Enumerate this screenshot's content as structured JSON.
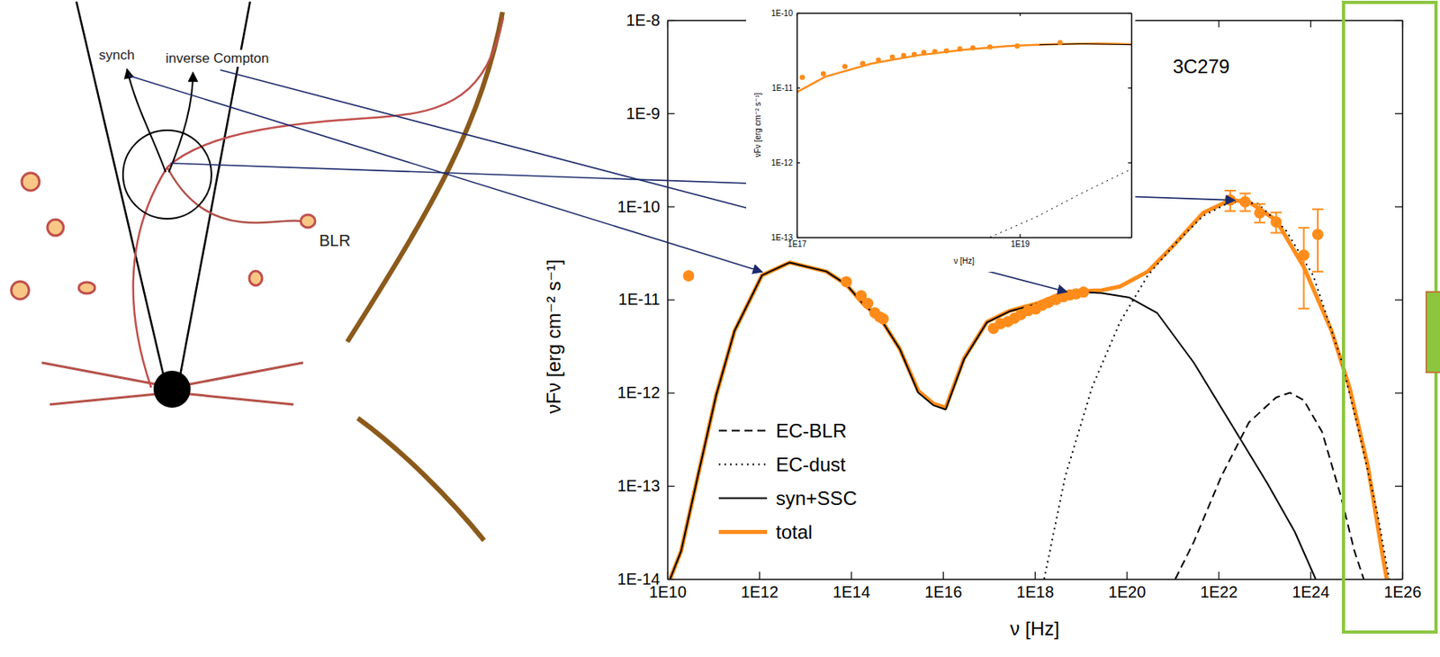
{
  "diagram": {
    "labels": [
      "synch",
      "inverse Compton",
      "BLR"
    ]
  },
  "chart_data": [
    {
      "type": "line",
      "title": "3C279",
      "x_label": "ν [Hz]",
      "y_label": "νFν [erg cm⁻² s⁻¹]",
      "log": true,
      "legend": "lower left",
      "xlim": [
        10000000000.0,
        1e+26
      ],
      "ylim": [
        1e-14,
        1e-08
      ],
      "xticks": [
        {
          "value": 10000000000.0,
          "label": "1E10"
        },
        {
          "value": 1000000000000.0,
          "label": "1E12"
        },
        {
          "value": 100000000000000.0,
          "label": "1E14"
        },
        {
          "value": 1e+16,
          "label": "1E16"
        },
        {
          "value": 1e+18,
          "label": "1E18"
        },
        {
          "value": 1e+20,
          "label": "1E20"
        },
        {
          "value": 1e+22,
          "label": "1E22"
        },
        {
          "value": 1e+24,
          "label": "1E24"
        },
        {
          "value": 1e+26,
          "label": "1E26"
        }
      ],
      "yticks": [
        {
          "value": 1e-14,
          "label": "1E-14"
        },
        {
          "value": 1e-13,
          "label": "1E-13"
        },
        {
          "value": 1e-12,
          "label": "1E-12"
        },
        {
          "value": 1e-11,
          "label": "1E-11"
        },
        {
          "value": 1e-10,
          "label": "1E-10"
        },
        {
          "value": 1e-09,
          "label": "1E-9"
        },
        {
          "value": 1e-08,
          "label": "1E-8"
        }
      ],
      "series": [
        {
          "type": "scatter",
          "color": "#ff8c1a",
          "marker": "circle",
          "x": [
            29000000000.0,
            79000000000000.0,
            166000000000000.0,
            230000000000000.0,
            330000000000000.0,
            420000000000000.0,
            500000000000000.0,
            1.26e+17,
            1.8e+17,
            2.6e+17,
            3.6e+17,
            5e+17,
            7.2e+17,
            1.05e+18,
            1.45e+18,
            2e+18,
            2.9e+18,
            4.2e+18,
            5.8e+18,
            7.9e+18,
            1.15e+19,
            1.8e+22,
            3.8e+22,
            7.9e+22,
            1.8e+23,
            7.2e+23,
            1.45e+24
          ],
          "values": [
            1.8e-11,
            1.55e-11,
            1.1e-11,
            9.1e-12,
            7.2e-12,
            6.5e-12,
            6.2e-12,
            4.9e-12,
            5.5e-12,
            5.8e-12,
            6.3e-12,
            6.9e-12,
            7.6e-12,
            7.9e-12,
            8.7e-12,
            9.3e-12,
            1e-11,
            1.07e-11,
            1.12e-11,
            1.15e-11,
            1.2e-11,
            1.17e-10,
            1.12e-10,
            8.5e-11,
            6.8e-11,
            3e-11,
            5e-11
          ],
          "error_minus": [
            null,
            null,
            null,
            null,
            null,
            null,
            null,
            null,
            null,
            null,
            null,
            null,
            null,
            null,
            null,
            null,
            null,
            null,
            null,
            null,
            null,
            2.8e-11,
            2.3e-11,
            1.8e-11,
            1.6e-11,
            2.2e-11,
            3e-11
          ],
          "error_plus": [
            null,
            null,
            null,
            null,
            null,
            null,
            null,
            null,
            null,
            null,
            null,
            null,
            null,
            null,
            null,
            null,
            null,
            null,
            null,
            null,
            null,
            3.1e-11,
            2.6e-11,
            2.1e-11,
            1.8e-11,
            2.9e-11,
            4.3e-11
          ]
        },
        {
          "name": "EC-BLR",
          "type": "line",
          "color": "#000000",
          "line_style": "dashed",
          "x": [
            1.15e+21,
            2.9e+21,
            1.15e+22,
            4.6e+22,
            1.8e+23,
            3.6e+23,
            7.2e+23,
            1.8e+24,
            4.6e+24,
            9.1e+24,
            1.45e+25
          ],
          "values": [
            1e-14,
            2.5e-14,
            1.26e-13,
            4.8e-13,
            8.9e-13,
            1e-12,
            8.3e-13,
            3.8e-13,
            7.8e-14,
            2e-14,
            1e-14
          ]
        },
        {
          "name": "EC-dust",
          "type": "line",
          "color": "#000000",
          "line_style": "dotted",
          "x": [
            1.6e+18,
            4.6e+18,
            1.8e+19,
            7.2e+19,
            2.9e+20,
            1.15e+21,
            4.6e+21,
            1.8e+22,
            7.2e+22,
            2.9e+23,
            1.15e+24,
            4.6e+24,
            1.15e+25,
            2.9e+25,
            5.2e+25
          ],
          "values": [
            1e-14,
            1.26e-13,
            1.17e-12,
            5.75e-12,
            1.82e-11,
            4e-11,
            7.9e-11,
            1.12e-10,
            1.07e-10,
            5.6e-11,
            1.82e-11,
            2.35e-12,
            3.8e-13,
            5e-14,
            1e-14
          ]
        },
        {
          "name": "syn+SSC",
          "type": "line",
          "color": "#000000",
          "line_style": "solid",
          "x": [
            11500000000.0,
            20000000000.0,
            46000000000.0,
            115000000000.0,
            290000000000.0,
            1150000000000.0,
            4600000000000.0,
            29000000000000.0,
            79000000000000.0,
            180000000000000.0,
            460000000000000.0,
            1150000000000000.0,
            2900000000000000.0,
            6300000000000000.0,
            1.15e+16,
            2.9e+16,
            9.1e+16,
            2.9e+17,
            1.15e+18,
            2.9e+18,
            1.15e+19,
            2.9e+19,
            1.15e+20,
            4.6e+20,
            2.9e+21,
            1.8e+22,
            1.15e+23,
            4.6e+23,
            1.3e+24
          ],
          "values": [
            1e-14,
            2e-14,
            1.26e-13,
            9.3e-13,
            4.6e-12,
            1.82e-11,
            2.5e-11,
            2e-11,
            1.45e-11,
            9.1e-12,
            6e-12,
            2.95e-12,
            1e-12,
            7.3e-13,
            6.6e-13,
            2.3e-12,
            5.7e-12,
            7.5e-12,
            9e-12,
            1.09e-11,
            1.2e-11,
            1.17e-11,
            1.05e-11,
            7.2e-12,
            2.1e-12,
            4.8e-13,
            1.07e-13,
            3.2e-14,
            1e-14
          ]
        },
        {
          "name": "total",
          "type": "line",
          "color": "#ff8c1a",
          "line_style": "solid",
          "x": [
            11500000000.0,
            20000000000.0,
            46000000000.0,
            115000000000.0,
            290000000000.0,
            1150000000000.0,
            4600000000000.0,
            29000000000000.0,
            79000000000000.0,
            180000000000000.0,
            460000000000000.0,
            1150000000000000.0,
            2900000000000000.0,
            6300000000000000.0,
            1.15e+16,
            2.9e+16,
            9.1e+16,
            2.9e+17,
            1.15e+18,
            2.9e+18,
            1.15e+19,
            2.9e+19,
            7.2e+19,
            2.9e+20,
            1.15e+21,
            4.6e+21,
            1.8e+22,
            4.6e+22,
            1.8e+23,
            7.2e+23,
            2.9e+24,
            7.2e+24,
            1.8e+25,
            3.6e+25,
            4.6e+25
          ],
          "values": [
            1e-14,
            2e-14,
            1.26e-13,
            9.3e-13,
            4.6e-12,
            1.82e-11,
            2.5e-11,
            2e-11,
            1.45e-11,
            9.1e-12,
            6e-12,
            2.95e-12,
            1.05e-12,
            7.6e-13,
            6.9e-13,
            2.35e-12,
            5.75e-12,
            7.6e-12,
            9.1e-12,
            1.1e-11,
            1.23e-11,
            1.26e-11,
            1.38e-11,
            2e-11,
            4e-11,
            8.5e-11,
            1.17e-10,
            1.12e-10,
            7.1e-11,
            2.24e-11,
            4.6e-12,
            1.12e-12,
            1.6e-13,
            2e-14,
            1e-14
          ]
        }
      ]
    },
    {
      "type": "line",
      "x_label": "ν [Hz]",
      "y_label": "νFν [erg cm⁻² s⁻¹]",
      "log": true,
      "xlim": [
        1e+17,
        1e+20
      ],
      "ylim": [
        1e-13,
        1e-10
      ],
      "xticks": [
        {
          "value": 1e+17,
          "label": "1E17"
        },
        {
          "value": 1e+19,
          "label": "1E19"
        }
      ],
      "yticks": [
        {
          "value": 1e-13,
          "label": "1E-13"
        },
        {
          "value": 1e-12,
          "label": "1E-12"
        },
        {
          "value": 1e-11,
          "label": "1E-11"
        },
        {
          "value": 1e-10,
          "label": "1E-10"
        }
      ],
      "series": [
        {
          "type": "scatter",
          "color": "#ff8c1a",
          "marker": "circle",
          "x": [
            1.12e+17,
            1.73e+17,
            2.7e+17,
            3.9e+17,
            5.4e+17,
            7.2e+17,
            9.1e+17,
            1.13e+18,
            1.38e+18,
            1.73e+18,
            2.2e+18,
            2.9e+18,
            3.8e+18,
            5.4e+18,
            9.5e+18,
            2.3e+19
          ],
          "values": [
            1.37e-11,
            1.53e-11,
            1.92e-11,
            2.1e-11,
            2.34e-11,
            2.56e-11,
            2.7e-11,
            2.78e-11,
            2.95e-11,
            3.03e-11,
            3.1e-11,
            3.3e-11,
            3.4e-11,
            3.5e-11,
            3.6e-11,
            4e-11
          ]
        },
        {
          "type": "line",
          "color": "#ff8c1a",
          "line_style": "solid",
          "x": [
            1e+17,
            1.8e+17,
            4.7e+17,
            1.2e+18,
            3.1e+18,
            7.8e+18,
            2e+19,
            5.1e+19,
            1e+20
          ],
          "values": [
            8.7e-12,
            1.4e-11,
            2.1e-11,
            2.7e-11,
            3.2e-11,
            3.6e-11,
            3.8e-11,
            3.9e-11,
            3.8e-11
          ]
        },
        {
          "type": "line",
          "color": "#000000",
          "line_style": "solid",
          "x": [
            1.5e+19,
            3.5e+19,
            1e+20
          ],
          "values": [
            3.75e-11,
            3.85e-11,
            3.75e-11
          ]
        },
        {
          "type": "line",
          "color": "#000000",
          "line_style": "dotted",
          "x": [
            5.4e+18,
            1.4e+19,
            3.5e+19,
            9.4e+19
          ],
          "values": [
            1e-13,
            1.86e-13,
            3.8e-13,
            7.8e-13
          ]
        }
      ]
    }
  ]
}
